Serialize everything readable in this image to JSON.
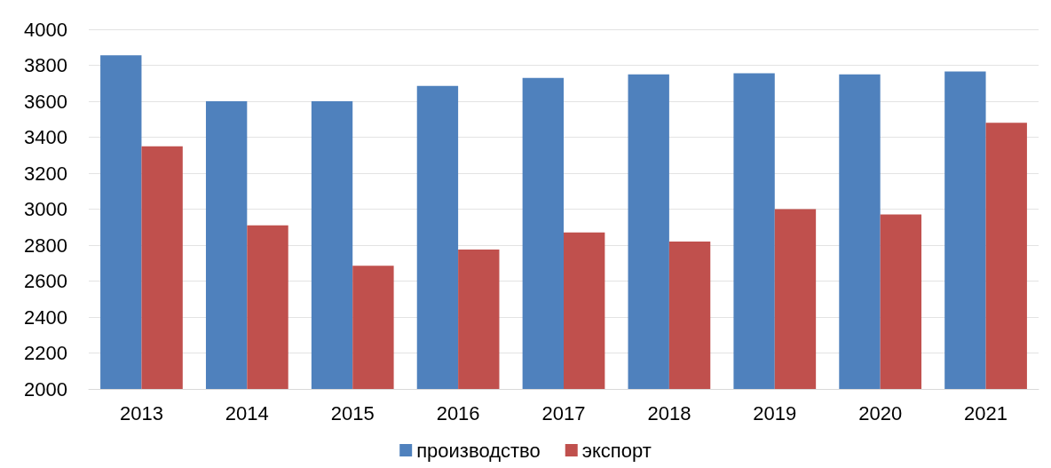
{
  "chart_data": {
    "type": "bar",
    "categories": [
      "2013",
      "2014",
      "2015",
      "2016",
      "2017",
      "2018",
      "2019",
      "2020",
      "2021"
    ],
    "series": [
      {
        "name": "производство",
        "color": "#4f81bd",
        "values": [
          3855,
          3600,
          3600,
          3685,
          3730,
          3750,
          3755,
          3750,
          3765
        ]
      },
      {
        "name": "экспорт",
        "color": "#c0504d",
        "values": [
          3350,
          2910,
          2685,
          2775,
          2870,
          2820,
          3000,
          2970,
          3480
        ]
      }
    ],
    "ylim": [
      2000,
      4000
    ],
    "yticks": [
      2000,
      2200,
      2400,
      2600,
      2800,
      3000,
      3200,
      3400,
      3600,
      3800,
      4000
    ],
    "grid": "y",
    "legend": "bottom"
  }
}
